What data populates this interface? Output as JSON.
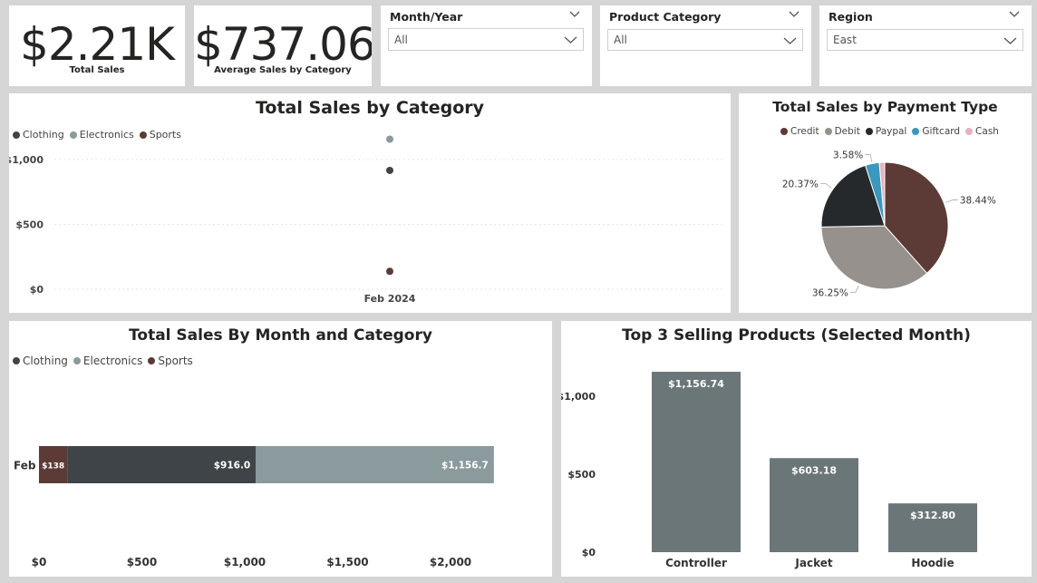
{
  "kpis": [
    {
      "value": "$2.21K",
      "label": "Total Sales"
    },
    {
      "value": "$737.06",
      "label": "Average Sales by Category"
    }
  ],
  "slicers": [
    {
      "title": "Month/Year",
      "value": "All"
    },
    {
      "title": "Product Category",
      "value": "All"
    },
    {
      "title": "Region",
      "value": "East"
    }
  ],
  "colors": {
    "clothing": "#3e4447",
    "electronics": "#8a9a9d",
    "sports": "#5c3b36",
    "credit": "#5c3b36",
    "debit": "#96918c",
    "paypal": "#26292b",
    "giftcard": "#3a97bd",
    "cash": "#e6b3bd",
    "products": "#6b7678"
  },
  "scatter": {
    "title": "Total Sales by Category",
    "legend": [
      "Clothing",
      "Electronics",
      "Sports"
    ]
  },
  "pie": {
    "title": "Total Sales by Payment Type",
    "legend": [
      "Credit",
      "Debit",
      "Paypal",
      "Giftcard",
      "Cash"
    ]
  },
  "stacked": {
    "title": "Total Sales By Month and Category",
    "legend": [
      "Clothing",
      "Electronics",
      "Sports"
    ]
  },
  "top3": {
    "title": "Top 3 Selling Products (Selected Month)"
  },
  "chart_data": [
    {
      "type": "scatter",
      "title": "Total Sales by Category",
      "categories": [
        "Feb 2024"
      ],
      "series": [
        {
          "name": "Clothing",
          "values": [
            916.0
          ]
        },
        {
          "name": "Electronics",
          "values": [
            1156.74
          ]
        },
        {
          "name": "Sports",
          "values": [
            138
          ]
        }
      ],
      "yticks": [
        "$0",
        "$500",
        "$1,000"
      ],
      "ylim": [
        0,
        1300
      ],
      "legend": "top-left"
    },
    {
      "type": "pie",
      "title": "Total Sales by Payment Type",
      "labels": [
        "Credit",
        "Debit",
        "Paypal",
        "Giftcard",
        "Cash"
      ],
      "values": [
        38.44,
        36.25,
        20.37,
        3.58,
        1.36
      ],
      "data_labels": [
        "38.44%",
        "36.25%",
        "20.37%",
        "3.58%",
        ""
      ],
      "legend": "top"
    },
    {
      "type": "bar",
      "orientation": "horizontal-stacked",
      "title": "Total Sales By Month and Category",
      "categories": [
        "Feb"
      ],
      "series": [
        {
          "name": "Sports",
          "values": [
            138
          ],
          "label": "$138"
        },
        {
          "name": "Clothing",
          "values": [
            916.0
          ],
          "label": "$916.0"
        },
        {
          "name": "Electronics",
          "values": [
            1156.7
          ],
          "label": "$1,156.7"
        }
      ],
      "xticks": [
        "$0",
        "$500",
        "$1,000",
        "$1,500",
        "$2,000"
      ],
      "xlim": [
        0,
        2200
      ],
      "legend": "top-left"
    },
    {
      "type": "bar",
      "title": "Top 3 Selling Products (Selected Month)",
      "categories": [
        "Controller",
        "Jacket",
        "Hoodie"
      ],
      "values": [
        1156.74,
        603.18,
        312.8
      ],
      "data_labels": [
        "$1,156.74",
        "$603.18",
        "$312.80"
      ],
      "yticks": [
        "$0",
        "$500",
        "$1,000"
      ],
      "ylim": [
        0,
        1220
      ]
    }
  ]
}
